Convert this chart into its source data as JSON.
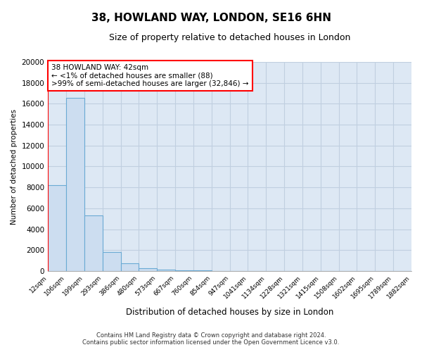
{
  "title": "38, HOWLAND WAY, LONDON, SE16 6HN",
  "subtitle": "Size of property relative to detached houses in London",
  "bar_values": [
    8200,
    16600,
    5300,
    1800,
    750,
    280,
    130,
    80,
    50,
    0,
    0,
    0,
    0,
    0,
    0,
    0,
    0,
    0,
    0,
    0
  ],
  "x_labels": [
    "12sqm",
    "106sqm",
    "199sqm",
    "293sqm",
    "386sqm",
    "480sqm",
    "573sqm",
    "667sqm",
    "760sqm",
    "854sqm",
    "947sqm",
    "1041sqm",
    "1134sqm",
    "1228sqm",
    "1321sqm",
    "1415sqm",
    "1508sqm",
    "1602sqm",
    "1695sqm",
    "1789sqm",
    "1882sqm"
  ],
  "bar_color": "#ccddf0",
  "bar_edge_color": "#6aaad4",
  "ylabel": "Number of detached properties",
  "xlabel": "Distribution of detached houses by size in London",
  "ylim": [
    0,
    20000
  ],
  "yticks": [
    0,
    2000,
    4000,
    6000,
    8000,
    10000,
    12000,
    14000,
    16000,
    18000,
    20000
  ],
  "annotation_title": "38 HOWLAND WAY: 42sqm",
  "annotation_line1": "← <1% of detached houses are smaller (88)",
  "annotation_line2": ">99% of semi-detached houses are larger (32,846) →",
  "footer_line1": "Contains HM Land Registry data © Crown copyright and database right 2024.",
  "footer_line2": "Contains public sector information licensed under the Open Government Licence v3.0.",
  "figure_bg_color": "#ffffff",
  "plot_bg_color": "#dde8f4",
  "grid_color": "#c0cfe0",
  "title_fontsize": 11,
  "subtitle_fontsize": 9
}
